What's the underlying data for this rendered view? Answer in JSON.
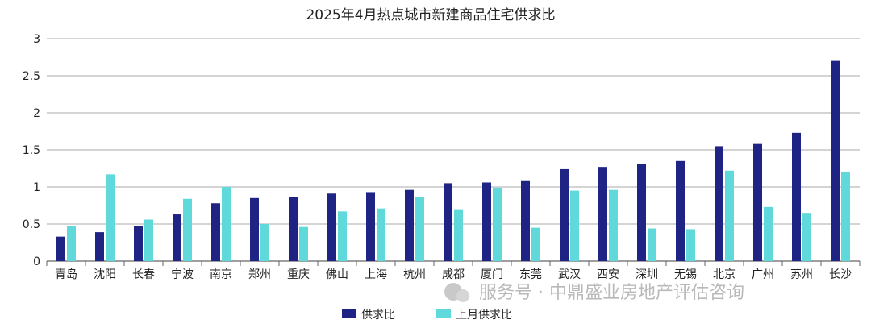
{
  "chart_data": {
    "type": "bar",
    "title": "2025年4月热点城市新建商品住宅供求比",
    "categories": [
      "青岛",
      "沈阳",
      "长春",
      "宁波",
      "南京",
      "郑州",
      "重庆",
      "佛山",
      "上海",
      "杭州",
      "成都",
      "厦门",
      "东莞",
      "武汉",
      "西安",
      "深圳",
      "无锡",
      "北京",
      "广州",
      "苏州",
      "长沙"
    ],
    "series": [
      {
        "name": "供求比",
        "color": "#1f2484",
        "values": [
          0.33,
          0.39,
          0.47,
          0.63,
          0.78,
          0.85,
          0.86,
          0.91,
          0.93,
          0.96,
          1.05,
          1.06,
          1.09,
          1.24,
          1.27,
          1.31,
          1.35,
          1.55,
          1.58,
          1.73,
          2.7
        ]
      },
      {
        "name": "上月供求比",
        "color": "#5fd9da",
        "values": [
          0.47,
          1.17,
          0.56,
          0.84,
          1.0,
          0.5,
          0.46,
          0.67,
          0.71,
          0.86,
          0.7,
          0.99,
          0.45,
          0.95,
          0.96,
          0.44,
          0.43,
          1.22,
          0.73,
          0.65,
          1.2
        ]
      }
    ],
    "ylim": [
      0,
      3
    ],
    "yticks": [
      "0",
      "0.5",
      "1",
      "1.5",
      "2",
      "2.5",
      "3"
    ],
    "ytick_values": [
      0,
      0.5,
      1,
      1.5,
      2,
      2.5,
      3
    ],
    "grid": true,
    "legend": "bottom-center"
  },
  "watermark": "服务号 · 中鼎盛业房地产评估咨询"
}
